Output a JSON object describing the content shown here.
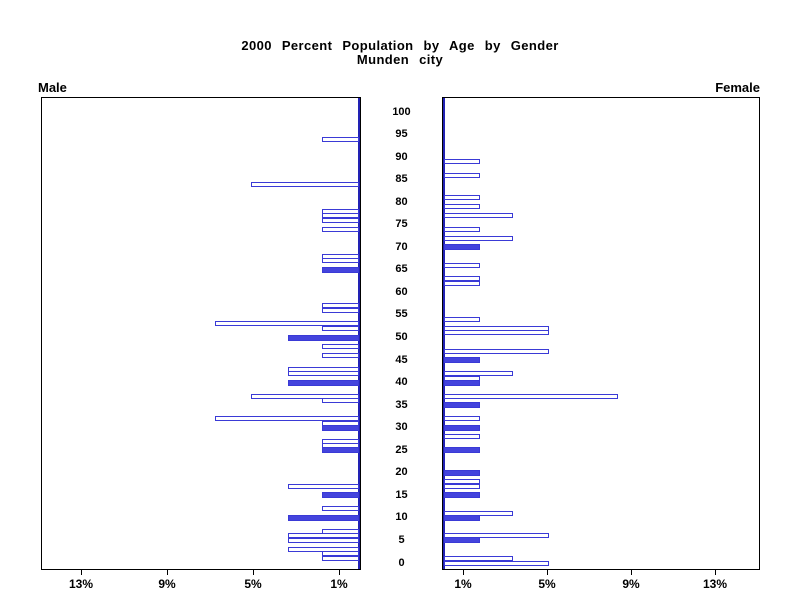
{
  "title": {
    "line1": "2000 Percent Population by Age by Gender",
    "line2": "Munden city"
  },
  "side_labels": {
    "left": "Male",
    "right": "Female"
  },
  "colors": {
    "bar_outline": "#3A3AD6",
    "bar_solid_fill": "#4444DD",
    "bar_hollow_fill": "#FFFFFF",
    "zero_axis": "#2222B4",
    "frame": "#000000",
    "text": "#000000",
    "background": "#FFFFFF"
  },
  "chart_data": {
    "type": "bar",
    "variant": "population-pyramid",
    "title": "2000 Percent Population by Age by Gender",
    "subtitle": "Munden city",
    "unit": "percent of population",
    "age_axis": {
      "min": 0,
      "max": 100,
      "step": 5,
      "labels": [
        "0",
        "5",
        "10",
        "15",
        "20",
        "25",
        "30",
        "35",
        "40",
        "45",
        "50",
        "55",
        "60",
        "65",
        "70",
        "75",
        "80",
        "85",
        "90",
        "95",
        "100"
      ]
    },
    "percent_axis": {
      "max": 15,
      "ticks": [
        {
          "value": 1,
          "label": "1%"
        },
        {
          "value": 5,
          "label": "5%"
        },
        {
          "value": 9,
          "label": "9%"
        },
        {
          "value": 13,
          "label": "13%"
        }
      ],
      "left_side_order": "13%, 9%, 5%, 1%",
      "right_side_order": "1%, 5%, 9%, 13%"
    },
    "series": [
      {
        "name": "Male",
        "side": "left",
        "bars": [
          {
            "age": 94,
            "value": 1.7,
            "solid": false
          },
          {
            "age": 84,
            "value": 5.0,
            "solid": false
          },
          {
            "age": 78,
            "value": 1.7,
            "solid": false
          },
          {
            "age": 77,
            "value": 1.7,
            "solid": false
          },
          {
            "age": 76,
            "value": 1.7,
            "solid": false
          },
          {
            "age": 74,
            "value": 1.7,
            "solid": false
          },
          {
            "age": 68,
            "value": 1.7,
            "solid": false
          },
          {
            "age": 67,
            "value": 1.7,
            "solid": false
          },
          {
            "age": 65,
            "value": 1.7,
            "solid": true
          },
          {
            "age": 57,
            "value": 1.7,
            "solid": false
          },
          {
            "age": 56,
            "value": 1.7,
            "solid": false
          },
          {
            "age": 53,
            "value": 6.7,
            "solid": false
          },
          {
            "age": 52,
            "value": 1.7,
            "solid": false
          },
          {
            "age": 50,
            "value": 3.3,
            "solid": true
          },
          {
            "age": 48,
            "value": 1.7,
            "solid": false
          },
          {
            "age": 46,
            "value": 1.7,
            "solid": false
          },
          {
            "age": 43,
            "value": 3.3,
            "solid": false
          },
          {
            "age": 42,
            "value": 3.3,
            "solid": false
          },
          {
            "age": 40,
            "value": 3.3,
            "solid": true
          },
          {
            "age": 37,
            "value": 5.0,
            "solid": false
          },
          {
            "age": 36,
            "value": 1.7,
            "solid": false
          },
          {
            "age": 32,
            "value": 6.7,
            "solid": false
          },
          {
            "age": 31,
            "value": 1.7,
            "solid": false
          },
          {
            "age": 30,
            "value": 1.7,
            "solid": true
          },
          {
            "age": 27,
            "value": 1.7,
            "solid": false
          },
          {
            "age": 26,
            "value": 1.7,
            "solid": false
          },
          {
            "age": 25,
            "value": 1.7,
            "solid": true
          },
          {
            "age": 17,
            "value": 3.3,
            "solid": false
          },
          {
            "age": 15,
            "value": 1.7,
            "solid": true
          },
          {
            "age": 12,
            "value": 1.7,
            "solid": false
          },
          {
            "age": 10,
            "value": 3.3,
            "solid": true
          },
          {
            "age": 7,
            "value": 1.7,
            "solid": false
          },
          {
            "age": 6,
            "value": 3.3,
            "solid": false
          },
          {
            "age": 5,
            "value": 3.3,
            "solid": false
          },
          {
            "age": 3,
            "value": 3.3,
            "solid": false
          },
          {
            "age": 2,
            "value": 1.7,
            "solid": false
          },
          {
            "age": 1,
            "value": 1.7,
            "solid": false
          }
        ]
      },
      {
        "name": "Female",
        "side": "right",
        "bars": [
          {
            "age": 89,
            "value": 1.7,
            "solid": false
          },
          {
            "age": 86,
            "value": 1.7,
            "solid": false
          },
          {
            "age": 81,
            "value": 1.7,
            "solid": false
          },
          {
            "age": 79,
            "value": 1.7,
            "solid": false
          },
          {
            "age": 77,
            "value": 3.3,
            "solid": false
          },
          {
            "age": 74,
            "value": 1.7,
            "solid": false
          },
          {
            "age": 72,
            "value": 3.3,
            "solid": false
          },
          {
            "age": 70,
            "value": 1.7,
            "solid": true
          },
          {
            "age": 66,
            "value": 1.7,
            "solid": false
          },
          {
            "age": 63,
            "value": 1.7,
            "solid": false
          },
          {
            "age": 62,
            "value": 1.7,
            "solid": false
          },
          {
            "age": 54,
            "value": 1.7,
            "solid": false
          },
          {
            "age": 52,
            "value": 5.0,
            "solid": false
          },
          {
            "age": 51,
            "value": 5.0,
            "solid": false
          },
          {
            "age": 47,
            "value": 5.0,
            "solid": false
          },
          {
            "age": 45,
            "value": 1.7,
            "solid": true
          },
          {
            "age": 42,
            "value": 3.3,
            "solid": false
          },
          {
            "age": 41,
            "value": 1.7,
            "solid": false
          },
          {
            "age": 40,
            "value": 1.7,
            "solid": true
          },
          {
            "age": 37,
            "value": 8.3,
            "solid": false
          },
          {
            "age": 35,
            "value": 1.7,
            "solid": true
          },
          {
            "age": 32,
            "value": 1.7,
            "solid": false
          },
          {
            "age": 30,
            "value": 1.7,
            "solid": true
          },
          {
            "age": 28,
            "value": 1.7,
            "solid": false
          },
          {
            "age": 25,
            "value": 1.7,
            "solid": true
          },
          {
            "age": 20,
            "value": 1.7,
            "solid": true
          },
          {
            "age": 18,
            "value": 1.7,
            "solid": false
          },
          {
            "age": 17,
            "value": 1.7,
            "solid": false
          },
          {
            "age": 15,
            "value": 1.7,
            "solid": true
          },
          {
            "age": 11,
            "value": 3.3,
            "solid": false
          },
          {
            "age": 10,
            "value": 1.7,
            "solid": true
          },
          {
            "age": 6,
            "value": 5.0,
            "solid": false
          },
          {
            "age": 5,
            "value": 1.7,
            "solid": true
          },
          {
            "age": 1,
            "value": 3.3,
            "solid": false
          },
          {
            "age": 0,
            "value": 5.0,
            "solid": false
          }
        ]
      }
    ]
  }
}
